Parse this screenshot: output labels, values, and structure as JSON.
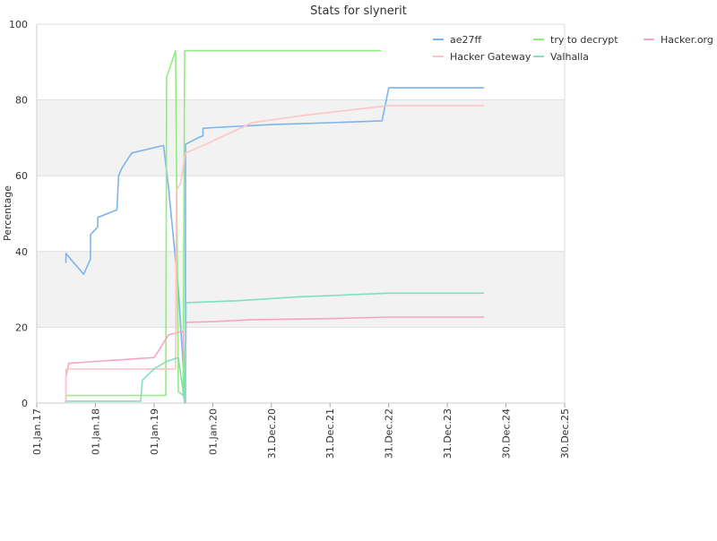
{
  "chart_data": {
    "type": "line",
    "title": "Stats for slynerit",
    "xlabel": "",
    "ylabel": "Percentage",
    "ylim": [
      0,
      100
    ],
    "yticks": [
      0,
      20,
      40,
      60,
      80,
      100
    ],
    "xlim": [
      "2017-01-01",
      "2025-12-30"
    ],
    "xticks": [
      {
        "date": "2017-01-01",
        "label": "01.Jan.17"
      },
      {
        "date": "2018-01-01",
        "label": "01.Jan.18"
      },
      {
        "date": "2019-01-01",
        "label": "01.Jan.19"
      },
      {
        "date": "2020-01-01",
        "label": "01.Jan.20"
      },
      {
        "date": "2020-12-31",
        "label": "31.Dec.20"
      },
      {
        "date": "2021-12-31",
        "label": "31.Dec.21"
      },
      {
        "date": "2022-12-31",
        "label": "31.Dec.22"
      },
      {
        "date": "2023-12-31",
        "label": "31.Dec.23"
      },
      {
        "date": "2024-12-30",
        "label": "30.Dec.24"
      },
      {
        "date": "2025-12-30",
        "label": "30.Dec.25"
      }
    ],
    "grid": true,
    "band_colors": [
      "#ffffff",
      "#f2f2f2"
    ],
    "legend_position": "top-right",
    "series": [
      {
        "name": "ae27ff",
        "color": "#7cb4ec",
        "points": [
          [
            "2017-07-01",
            37
          ],
          [
            "2017-07-02",
            39.5
          ],
          [
            "2017-08-20",
            37
          ],
          [
            "2017-10-20",
            34
          ],
          [
            "2017-12-01",
            38
          ],
          [
            "2017-12-02",
            44.5
          ],
          [
            "2018-01-15",
            46.5
          ],
          [
            "2018-01-16",
            49
          ],
          [
            "2018-05-15",
            51
          ],
          [
            "2018-05-25",
            60
          ],
          [
            "2018-06-15",
            62
          ],
          [
            "2018-08-15",
            66
          ],
          [
            "2019-03-01",
            68
          ],
          [
            "2019-04-01",
            57
          ],
          [
            "2019-06-01",
            30
          ],
          [
            "2019-07-15",
            0
          ],
          [
            "2019-07-16",
            68.3
          ],
          [
            "2019-10-01",
            70
          ],
          [
            "2019-11-01",
            70.5
          ],
          [
            "2019-11-02",
            72.5
          ],
          [
            "2020-01-01",
            72.7
          ],
          [
            "2021-01-01",
            73.5
          ],
          [
            "2022-01-01",
            74
          ],
          [
            "2022-11-20",
            74.5
          ],
          [
            "2022-12-31",
            83.2
          ],
          [
            "2024-08-15",
            83.2
          ]
        ]
      },
      {
        "name": "try to decrypt",
        "color": "#90ed7d",
        "points": [
          [
            "2017-07-01",
            0
          ],
          [
            "2017-07-02",
            2
          ],
          [
            "2019-03-15",
            2
          ],
          [
            "2019-03-20",
            86
          ],
          [
            "2019-05-15",
            93
          ],
          [
            "2019-06-01",
            3
          ],
          [
            "2019-07-01",
            2
          ],
          [
            "2019-07-10",
            93
          ],
          [
            "2022-11-15",
            93
          ]
        ]
      },
      {
        "name": "Hacker.org",
        "color": "#f7a3c4",
        "points": [
          [
            "2017-07-01",
            0
          ],
          [
            "2017-07-02",
            7
          ],
          [
            "2017-07-20",
            10.5
          ],
          [
            "2018-01-01",
            11
          ],
          [
            "2019-01-01",
            12
          ],
          [
            "2019-02-01",
            14
          ],
          [
            "2019-04-01",
            18
          ],
          [
            "2019-07-01",
            19
          ],
          [
            "2019-07-15",
            0
          ],
          [
            "2019-07-20",
            21.3
          ],
          [
            "2020-01-01",
            21.5
          ],
          [
            "2020-09-01",
            22
          ],
          [
            "2022-01-01",
            22.3
          ],
          [
            "2022-12-31",
            22.7
          ],
          [
            "2024-08-15",
            22.7
          ]
        ]
      },
      {
        "name": "Hacker Gateway",
        "color": "#ffc4c4",
        "points": [
          [
            "2017-07-01",
            0
          ],
          [
            "2017-07-02",
            9
          ],
          [
            "2019-05-15",
            9
          ],
          [
            "2019-05-20",
            56
          ],
          [
            "2019-06-15",
            58
          ],
          [
            "2019-07-15",
            66
          ],
          [
            "2019-12-01",
            68.5
          ],
          [
            "2020-09-01",
            74
          ],
          [
            "2021-08-01",
            76
          ],
          [
            "2022-12-31",
            78.5
          ],
          [
            "2024-08-15",
            78.5
          ]
        ]
      },
      {
        "name": "Valhalla",
        "color": "#7ee0c0",
        "points": [
          [
            "2017-07-01",
            0.5
          ],
          [
            "2018-10-10",
            0.5
          ],
          [
            "2018-10-20",
            6
          ],
          [
            "2019-01-01",
            9
          ],
          [
            "2019-03-20",
            11
          ],
          [
            "2019-06-01",
            12
          ],
          [
            "2019-07-10",
            0
          ],
          [
            "2019-07-20",
            26.5
          ],
          [
            "2020-06-01",
            27
          ],
          [
            "2021-06-01",
            28
          ],
          [
            "2022-12-31",
            29
          ],
          [
            "2024-08-15",
            29
          ]
        ]
      }
    ]
  }
}
